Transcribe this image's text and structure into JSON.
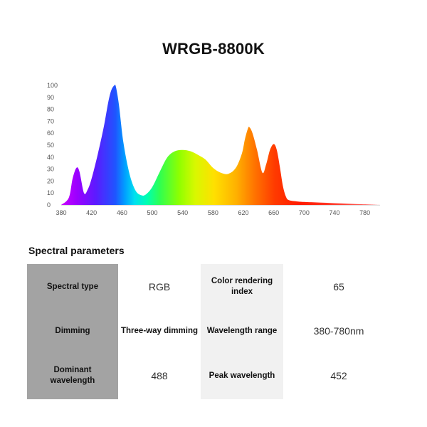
{
  "title": "WRGB-8800K",
  "chart_data": {
    "type": "area",
    "title": "WRGB-8800K",
    "xlim": [
      380,
      800
    ],
    "ylim": [
      0,
      100
    ],
    "x_ticks": [
      "380",
      "420",
      "460",
      "500",
      "540",
      "580",
      "620",
      "660",
      "700",
      "740",
      "780"
    ],
    "y_ticks": [
      "0",
      "10",
      "20",
      "30",
      "40",
      "50",
      "60",
      "70",
      "80",
      "90",
      "100"
    ],
    "grid": false,
    "legend": "none",
    "fill": "visible-spectrum-gradient",
    "series": [
      {
        "x": [
          380,
          390,
          395,
          400,
          404,
          410,
          415,
          420,
          428,
          436,
          442,
          446,
          450,
          452,
          456,
          462,
          470,
          478,
          486,
          492,
          500,
          510,
          520,
          530,
          540,
          550,
          560,
          570,
          580,
          590,
          600,
          610,
          618,
          622,
          626,
          628,
          632,
          638,
          645,
          650,
          655,
          660,
          664,
          668,
          672,
          676,
          680,
          690,
          700,
          720,
          740,
          760,
          780,
          800
        ],
        "y": [
          0,
          6,
          22,
          31,
          28,
          10,
          13,
          22,
          42,
          65,
          86,
          96,
          100,
          99,
          84,
          52,
          26,
          12,
          8,
          9,
          15,
          28,
          40,
          45,
          46,
          45,
          42,
          38,
          31,
          27,
          26,
          31,
          43,
          55,
          64,
          65,
          60,
          46,
          27,
          34,
          46,
          51,
          46,
          32,
          16,
          7,
          4,
          3,
          2.5,
          2,
          1.5,
          1,
          0.5,
          0
        ]
      }
    ]
  },
  "section_title": "Spectral parameters",
  "parameters": {
    "spectral_type_label": "Spectral type",
    "spectral_type_value": "RGB",
    "cri_label": "Color rendering index",
    "cri_value": "65",
    "dimming_label": "Dimming",
    "dimming_value": "Three-way dimming",
    "wavelength_range_label": "Wavelength range",
    "wavelength_range_value": "380-780nm",
    "dominant_wavelength_label_1": "Dominant",
    "dominant_wavelength_label_2": "wavelength",
    "dominant_wavelength_value": "488",
    "peak_wavelength_label": "Peak wavelength",
    "peak_wavelength_value": "452"
  }
}
